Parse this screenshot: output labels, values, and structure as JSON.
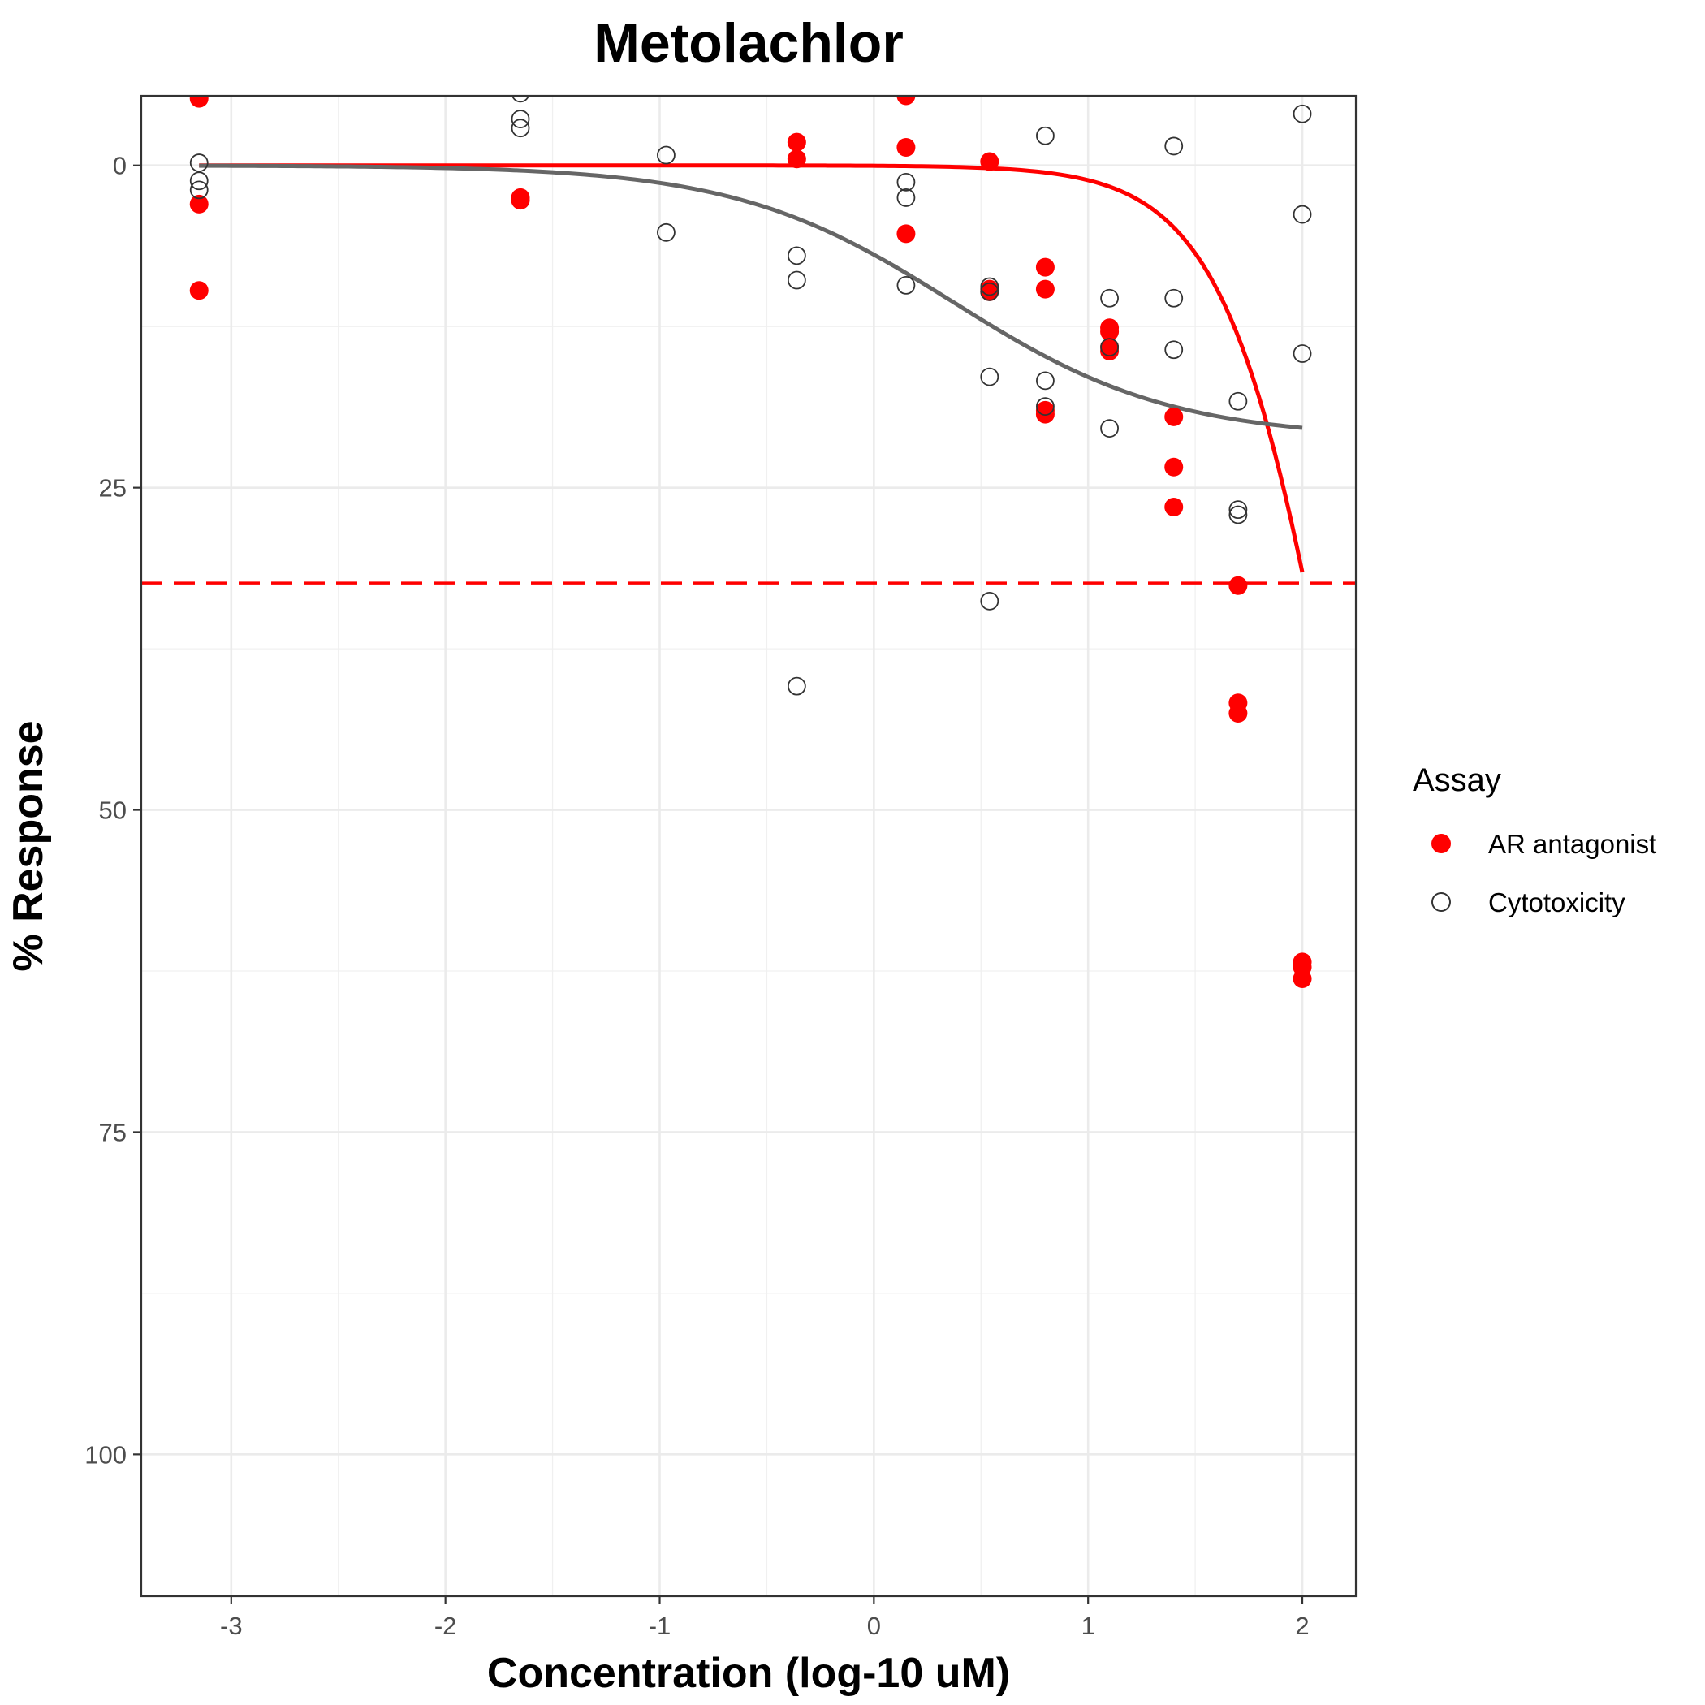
{
  "chart_data": {
    "type": "scatter",
    "title": "Metolachlor",
    "xlabel": "Concentration (log-10 uM)",
    "ylabel": "% Response",
    "xlim": [
      -3.42,
      2.25
    ],
    "ylim": [
      -5.4,
      111
    ],
    "y_reversed": true,
    "grid": true,
    "x_ticks": [
      -3,
      -2,
      -1,
      0,
      1,
      2
    ],
    "y_ticks": [
      0,
      25,
      50,
      75,
      100
    ],
    "legend": {
      "title": "Assay",
      "position": "right",
      "entries": [
        {
          "label": "AR antagonist",
          "marker": "filled-circle",
          "color": "#ff0000"
        },
        {
          "label": "Cytotoxicity",
          "marker": "open-circle",
          "color": "#333333"
        }
      ]
    },
    "threshold_line": {
      "y": 32.4,
      "style": "dashed",
      "color": "#ff0000"
    },
    "series": [
      {
        "name": "AR antagonist",
        "color": "#ff0000",
        "marker": "filled",
        "points": [
          [
            -3.15,
            -5.2
          ],
          [
            -3.15,
            3.0
          ],
          [
            -3.15,
            9.7
          ],
          [
            -1.65,
            2.5
          ],
          [
            -1.65,
            2.7
          ],
          [
            -0.36,
            -1.8
          ],
          [
            -0.36,
            -0.5
          ],
          [
            0.15,
            -5.4
          ],
          [
            0.15,
            -1.4
          ],
          [
            0.15,
            5.3
          ],
          [
            0.54,
            -0.3
          ],
          [
            0.54,
            9.6
          ],
          [
            0.54,
            9.8
          ],
          [
            0.8,
            7.9
          ],
          [
            0.8,
            9.6
          ],
          [
            0.8,
            19.0
          ],
          [
            0.8,
            19.3
          ],
          [
            1.1,
            12.6
          ],
          [
            1.1,
            12.9
          ],
          [
            1.1,
            14.1
          ],
          [
            1.1,
            14.4
          ],
          [
            1.4,
            19.5
          ],
          [
            1.4,
            23.4
          ],
          [
            1.4,
            26.5
          ],
          [
            1.7,
            32.6
          ],
          [
            1.7,
            41.7
          ],
          [
            1.7,
            42.5
          ],
          [
            2.0,
            61.8
          ],
          [
            2.0,
            62.2
          ],
          [
            2.0,
            63.1
          ]
        ],
        "curve": {
          "top": 0,
          "bottom": 100,
          "log_ac50": 2.21,
          "hill": 1.6,
          "x_range": [
            -3.15,
            2.0
          ]
        }
      },
      {
        "name": "Cytotoxicity",
        "color": "#333333",
        "marker": "open",
        "points": [
          [
            -3.15,
            -0.2
          ],
          [
            -3.15,
            1.2
          ],
          [
            -3.15,
            1.9
          ],
          [
            -1.65,
            -5.6
          ],
          [
            -1.65,
            -3.6
          ],
          [
            -1.65,
            -2.9
          ],
          [
            -0.97,
            -0.8
          ],
          [
            -0.97,
            5.2
          ],
          [
            -0.36,
            7.0
          ],
          [
            -0.36,
            8.9
          ],
          [
            -0.36,
            40.4
          ],
          [
            0.15,
            1.3
          ],
          [
            0.15,
            2.5
          ],
          [
            0.15,
            9.3
          ],
          [
            0.54,
            9.4
          ],
          [
            0.54,
            9.8
          ],
          [
            0.54,
            16.4
          ],
          [
            0.54,
            33.8
          ],
          [
            0.8,
            -2.3
          ],
          [
            0.8,
            16.7
          ],
          [
            0.8,
            18.7
          ],
          [
            1.1,
            10.3
          ],
          [
            1.1,
            14.1
          ],
          [
            1.1,
            20.4
          ],
          [
            1.4,
            -1.5
          ],
          [
            1.4,
            10.3
          ],
          [
            1.4,
            14.3
          ],
          [
            1.7,
            18.3
          ],
          [
            1.7,
            26.7
          ],
          [
            1.7,
            27.1
          ],
          [
            2.0,
            -4.0
          ],
          [
            2.0,
            3.8
          ],
          [
            2.0,
            14.6
          ]
        ],
        "curve": {
          "top": 0,
          "bottom": 21.2,
          "log_ac50": 0.37,
          "hill": 0.85,
          "x_range": [
            -3.15,
            2.0
          ]
        }
      }
    ]
  }
}
